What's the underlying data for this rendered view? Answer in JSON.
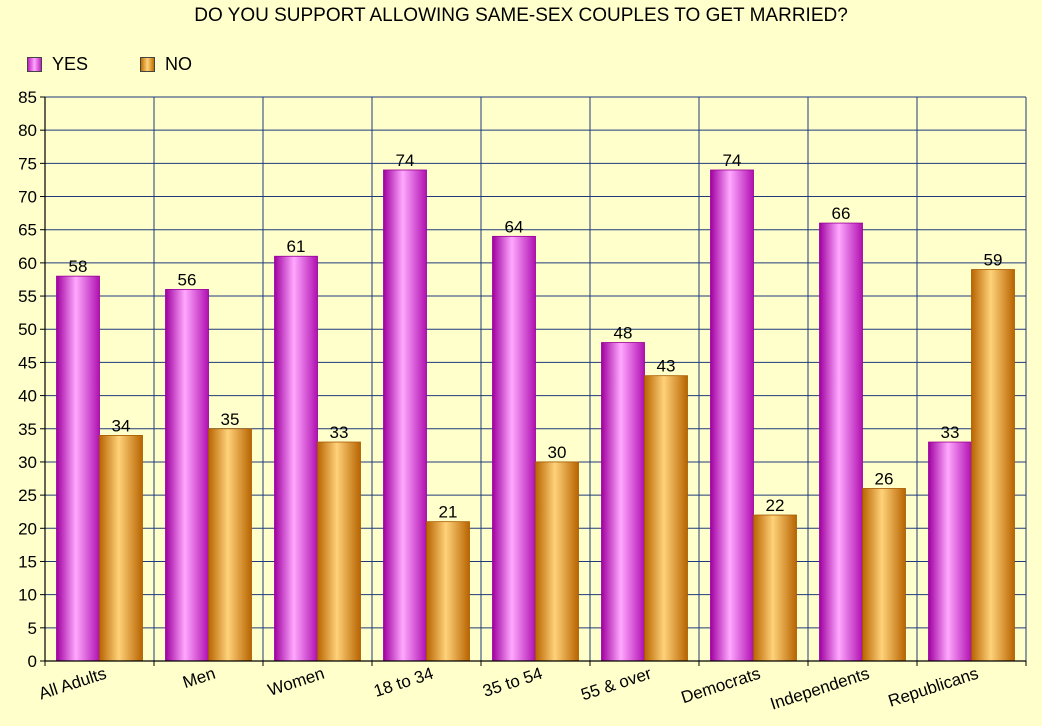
{
  "chart_data": {
    "type": "bar",
    "title": "DO YOU SUPPORT ALLOWING SAME-SEX COUPLES TO GET MARRIED?",
    "xlabel": "",
    "ylabel": "",
    "categories": [
      "All Adults",
      "Men",
      "Women",
      "18 to 34",
      "35 to 54",
      "55 & over",
      "Democrats",
      "Independents",
      "Republicans"
    ],
    "series": [
      {
        "name": "YES",
        "values": [
          58,
          56,
          61,
          74,
          64,
          48,
          74,
          66,
          33
        ]
      },
      {
        "name": "NO",
        "values": [
          34,
          35,
          33,
          21,
          30,
          43,
          22,
          26,
          59
        ]
      }
    ],
    "ylim": [
      0,
      85
    ],
    "yticks": [
      0,
      5,
      10,
      15,
      20,
      25,
      30,
      35,
      40,
      45,
      50,
      55,
      60,
      65,
      70,
      75,
      80,
      85
    ],
    "grid": true,
    "legend_position": "top-left",
    "colors": {
      "yes_light": "#FFA8FF",
      "yes_mid": "#EE33EE",
      "yes_dark": "#990099",
      "no_light": "#FFD27A",
      "no_mid": "#F0A020",
      "no_dark": "#A85A00",
      "plot_background": "#FFFFCC",
      "grid": "#1F3A7A",
      "axis": "#000000"
    }
  }
}
